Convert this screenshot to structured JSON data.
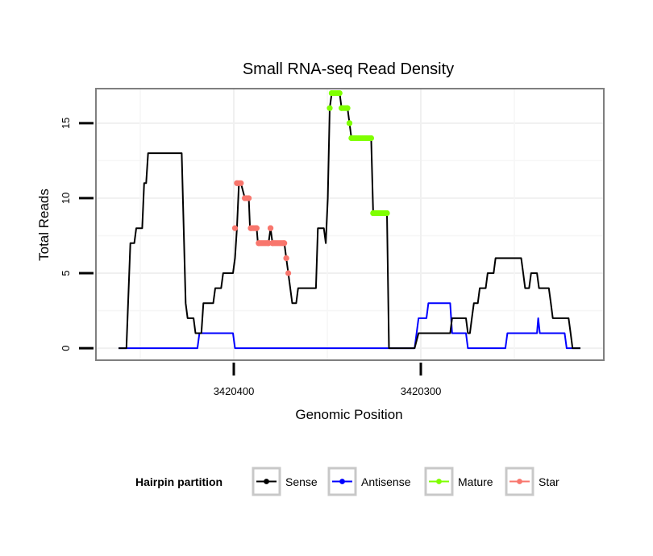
{
  "chart_data": {
    "type": "line",
    "title": "Small RNA-seq Read Density",
    "xlabel": "Genomic Position",
    "ylabel": "Total Reads",
    "x_tick_labels": [
      "3420400",
      "3420300"
    ],
    "y_ticks": [
      0,
      5,
      10,
      15
    ],
    "ylim": [
      -0.8,
      17.3
    ],
    "x_domain_index": [
      0,
      128
    ],
    "x_note": "Genomic position decreases left to right; x values are ordinal position indices across the plotted window.",
    "legend": {
      "title": "Hairpin partition",
      "position": "bottom",
      "entries": [
        "Sense",
        "Antisense",
        "Mature",
        "Star"
      ]
    },
    "series": [
      {
        "name": "Sense",
        "color": "#000000",
        "points": [
          [
            0,
            0
          ],
          [
            2,
            0
          ],
          [
            3,
            7
          ],
          [
            4,
            7
          ],
          [
            4.5,
            8
          ],
          [
            6,
            8
          ],
          [
            6.5,
            11
          ],
          [
            7,
            11
          ],
          [
            7.5,
            13
          ],
          [
            16,
            13
          ],
          [
            17,
            3
          ],
          [
            17.5,
            2
          ],
          [
            19,
            2
          ],
          [
            19.5,
            1
          ],
          [
            21,
            1
          ],
          [
            21.5,
            3
          ],
          [
            24,
            3
          ],
          [
            24.5,
            4
          ],
          [
            26,
            4
          ],
          [
            26.5,
            5
          ],
          [
            29,
            5
          ],
          [
            29.5,
            6
          ],
          [
            30,
            8
          ],
          [
            30.5,
            11
          ],
          [
            31,
            11
          ],
          [
            32,
            10
          ],
          [
            33,
            10
          ],
          [
            33.3,
            8
          ],
          [
            35,
            8
          ],
          [
            35.3,
            7
          ],
          [
            38,
            7
          ],
          [
            38.5,
            8
          ],
          [
            39,
            7
          ],
          [
            42,
            7
          ],
          [
            42.5,
            6
          ],
          [
            43,
            5
          ],
          [
            44,
            3
          ],
          [
            45,
            3
          ],
          [
            45.5,
            4
          ],
          [
            50,
            4
          ],
          [
            50.5,
            8
          ],
          [
            52,
            8
          ],
          [
            52.5,
            7
          ],
          [
            53,
            10
          ],
          [
            53.5,
            16
          ],
          [
            54,
            17
          ],
          [
            56,
            17
          ],
          [
            56.5,
            16
          ],
          [
            58,
            16
          ],
          [
            58.5,
            15
          ],
          [
            59,
            14
          ],
          [
            64,
            14
          ],
          [
            64.5,
            9
          ],
          [
            68,
            9
          ],
          [
            68.5,
            0
          ],
          [
            72,
            0
          ],
          [
            75,
            0
          ],
          [
            76,
            1
          ],
          [
            84,
            1
          ],
          [
            84.5,
            2
          ],
          [
            88,
            2
          ],
          [
            88.5,
            1
          ],
          [
            89,
            1
          ],
          [
            89.5,
            2
          ],
          [
            90,
            3
          ],
          [
            91,
            3
          ],
          [
            91.5,
            4
          ],
          [
            93,
            4
          ],
          [
            93.5,
            5
          ],
          [
            95,
            5
          ],
          [
            95.5,
            6
          ],
          [
            102,
            6
          ],
          [
            102.5,
            5
          ],
          [
            103,
            4
          ],
          [
            104,
            4
          ],
          [
            104.5,
            5
          ],
          [
            106,
            5
          ],
          [
            106.5,
            4
          ],
          [
            109,
            4
          ],
          [
            109.5,
            3
          ],
          [
            110,
            2
          ],
          [
            114,
            2
          ],
          [
            114.5,
            1
          ],
          [
            115,
            0
          ],
          [
            117,
            0
          ]
        ]
      },
      {
        "name": "Antisense",
        "color": "#0000ff",
        "points": [
          [
            0,
            0
          ],
          [
            20,
            0
          ],
          [
            20.5,
            1
          ],
          [
            29,
            1
          ],
          [
            29.5,
            0
          ],
          [
            75,
            0
          ],
          [
            76,
            2
          ],
          [
            78,
            2
          ],
          [
            78.5,
            3
          ],
          [
            84,
            3
          ],
          [
            84.5,
            1
          ],
          [
            88,
            1
          ],
          [
            88.5,
            0
          ],
          [
            98,
            0
          ],
          [
            98.5,
            1
          ],
          [
            106,
            1
          ],
          [
            106.3,
            2
          ],
          [
            106.7,
            1
          ],
          [
            113,
            1
          ],
          [
            113.5,
            0
          ],
          [
            117,
            0
          ]
        ]
      },
      {
        "name": "Mature",
        "color": "#7fff00",
        "points": [
          [
            53.5,
            16
          ],
          [
            54,
            17
          ],
          [
            56,
            17
          ],
          [
            56.5,
            16
          ],
          [
            58,
            16
          ],
          [
            58.5,
            15
          ],
          [
            59,
            14
          ],
          [
            64,
            14
          ],
          [
            64.5,
            9
          ],
          [
            68,
            9
          ]
        ]
      },
      {
        "name": "Star",
        "color": "#f8766d",
        "points": [
          [
            29.5,
            8
          ],
          [
            30,
            11
          ],
          [
            31,
            11
          ],
          [
            32,
            10
          ],
          [
            33,
            10
          ],
          [
            33.5,
            8
          ],
          [
            35,
            8
          ],
          [
            35.5,
            7
          ],
          [
            38,
            7
          ],
          [
            38.5,
            8
          ],
          [
            39,
            7
          ],
          [
            42,
            7
          ],
          [
            42.5,
            6
          ],
          [
            43,
            5
          ]
        ]
      }
    ]
  }
}
